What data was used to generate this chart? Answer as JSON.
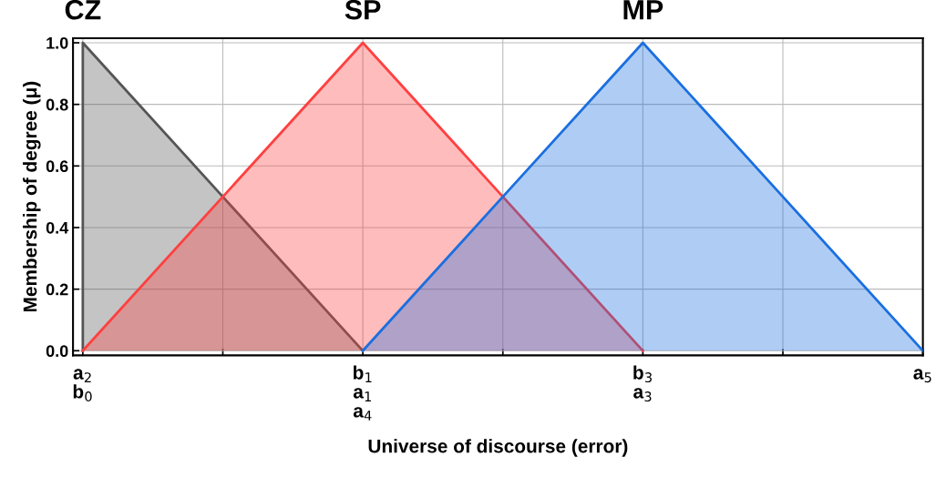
{
  "chart_data": {
    "type": "area",
    "xlabel": "Universe of discourse (error)",
    "ylabel": "Membership of degree (μ)",
    "categories": [
      "a$_{2}$\nb$_{0}$",
      null,
      "b$_{1}$\na$_{1}$\na$_{4}$",
      null,
      "b$_{3}$\na$_{3}$",
      null,
      "a$_{5}$"
    ],
    "series": [
      {
        "name": "CZ",
        "color": "#555555",
        "values": [
          1,
          0.5,
          0,
          null,
          null,
          null,
          null
        ]
      },
      {
        "name": "SP",
        "color": "#ff4040",
        "values": [
          0,
          0.5,
          1,
          0.5,
          0,
          null,
          null
        ]
      },
      {
        "name": "MP",
        "color": "#1a6fe0",
        "values": [
          null,
          null,
          0,
          0.5,
          1,
          0.5,
          0
        ]
      }
    ],
    "ylim": [
      -0.015,
      1.015
    ],
    "yticks": [
      {
        "value": 0,
        "label": "0.0"
      },
      {
        "value": 0.2,
        "label": "0.2"
      },
      {
        "value": 0.4,
        "label": "0.4"
      },
      {
        "value": 0.6,
        "label": "0.6"
      },
      {
        "value": 0.8,
        "label": "0.8"
      },
      {
        "value": 1,
        "label": "1.0"
      }
    ],
    "grid": true,
    "legend": false
  }
}
